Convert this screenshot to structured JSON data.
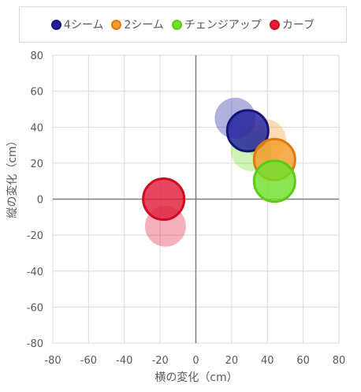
{
  "chart_data": {
    "type": "bubble",
    "xlabel": "横の変化（cm）",
    "ylabel": "縦の変化（cm）",
    "xlim": [
      -80,
      80
    ],
    "ylim": [
      -80,
      80
    ],
    "xticks": [
      -80,
      -60,
      -40,
      -20,
      0,
      20,
      40,
      60,
      80
    ],
    "yticks": [
      -80,
      -60,
      -40,
      -20,
      0,
      20,
      40,
      60,
      80
    ],
    "grid": true,
    "legend_position": "top",
    "series": [
      {
        "name": "4シーム",
        "color": "#1f1f9e",
        "edge": "#16167a",
        "points": [
          {
            "x": 22,
            "y": 45,
            "style": "faint"
          },
          {
            "x": 29,
            "y": 38,
            "style": "main"
          }
        ]
      },
      {
        "name": "2シーム",
        "color": "#f39c2a",
        "edge": "#e07a10",
        "points": [
          {
            "x": 39,
            "y": 33,
            "style": "faint"
          },
          {
            "x": 44,
            "y": 22,
            "style": "main"
          }
        ]
      },
      {
        "name": "チェンジアップ",
        "color": "#6fe02a",
        "edge": "#5acb16",
        "points": [
          {
            "x": 31,
            "y": 27,
            "style": "faint"
          },
          {
            "x": 44,
            "y": 10,
            "style": "main"
          }
        ]
      },
      {
        "name": "カーブ",
        "color": "#e01e3c",
        "edge": "#d00a1e",
        "points": [
          {
            "x": -17,
            "y": -15,
            "style": "faint"
          },
          {
            "x": -18,
            "y": 0,
            "style": "main"
          }
        ]
      }
    ]
  }
}
